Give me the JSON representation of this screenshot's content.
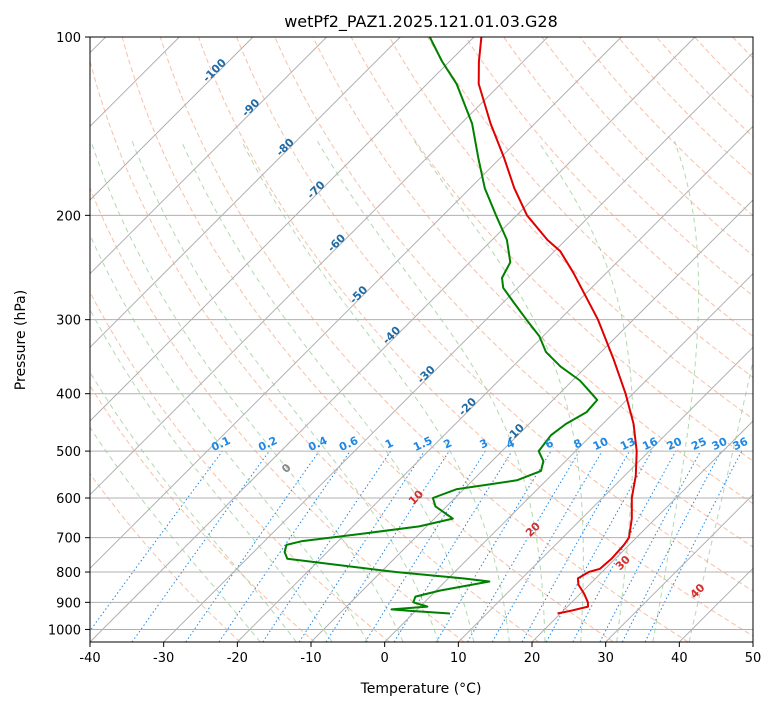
{
  "chart_data": {
    "type": "line",
    "subtype": "skew-t log-p diagram",
    "title": "wetPf2_PAZ1.2025.121.01.03.G28",
    "xlabel": "Temperature (°C)",
    "ylabel": "Pressure (hPa)",
    "xlim": [
      -40,
      50
    ],
    "ylim": [
      1050,
      100
    ],
    "y_scale": "log",
    "x_ticks": [
      -40,
      -30,
      -20,
      -10,
      0,
      10,
      20,
      30,
      40,
      50
    ],
    "y_ticks": [
      100,
      200,
      300,
      400,
      500,
      600,
      700,
      800,
      900,
      1000
    ],
    "grid": true,
    "legend": "none",
    "colors": {
      "temperature": "#e00000",
      "dewpoint": "#008000",
      "isotherm_label": "#1f6aa5",
      "mixing_ratio": "#1e88e5",
      "moist_adiabat_label": "#d32f2f",
      "dry_adiabat": "#f4a582",
      "moist_adiabat": "#8fc98f",
      "grid": "#b0b0b0"
    },
    "series": [
      {
        "key": "temperature",
        "points": [
          [
            940,
            19.6
          ],
          [
            930,
            21.0
          ],
          [
            915,
            22.8
          ],
          [
            900,
            22.2
          ],
          [
            870,
            20.5
          ],
          [
            840,
            18.5
          ],
          [
            820,
            17.6
          ],
          [
            800,
            18.2
          ],
          [
            790,
            19.3
          ],
          [
            760,
            19.5
          ],
          [
            720,
            19.3
          ],
          [
            700,
            19.0
          ],
          [
            650,
            16.8
          ],
          [
            600,
            14.0
          ],
          [
            550,
            11.5
          ],
          [
            500,
            8.3
          ],
          [
            450,
            4.2
          ],
          [
            400,
            -1.0
          ],
          [
            350,
            -7.3
          ],
          [
            300,
            -14.8
          ],
          [
            250,
            -24.5
          ],
          [
            230,
            -29.2
          ],
          [
            220,
            -32.5
          ],
          [
            200,
            -38.6
          ],
          [
            180,
            -44.0
          ],
          [
            160,
            -49.5
          ],
          [
            140,
            -56.0
          ],
          [
            120,
            -63.0
          ],
          [
            110,
            -66.0
          ],
          [
            100,
            -69.0
          ]
        ]
      },
      {
        "key": "dewpoint",
        "points": [
          [
            940,
            5.0
          ],
          [
            930,
            -1.0
          ],
          [
            925,
            -3.5
          ],
          [
            915,
            1.0
          ],
          [
            900,
            -1.5
          ],
          [
            880,
            -2.0
          ],
          [
            860,
            0.5
          ],
          [
            830,
            6.0
          ],
          [
            820,
            2.0
          ],
          [
            800,
            -8.0
          ],
          [
            760,
            -24.5
          ],
          [
            740,
            -25.8
          ],
          [
            720,
            -26.5
          ],
          [
            710,
            -25.0
          ],
          [
            690,
            -18.0
          ],
          [
            670,
            -11.0
          ],
          [
            650,
            -7.5
          ],
          [
            620,
            -11.5
          ],
          [
            600,
            -13.0
          ],
          [
            580,
            -11.0
          ],
          [
            560,
            -4.0
          ],
          [
            540,
            -2.0
          ],
          [
            520,
            -3.0
          ],
          [
            500,
            -5.0
          ],
          [
            470,
            -5.5
          ],
          [
            450,
            -5.0
          ],
          [
            430,
            -3.8
          ],
          [
            410,
            -4.0
          ],
          [
            400,
            -5.6
          ],
          [
            380,
            -9.0
          ],
          [
            360,
            -13.5
          ],
          [
            340,
            -17.5
          ],
          [
            320,
            -20.5
          ],
          [
            300,
            -24.5
          ],
          [
            280,
            -28.7
          ],
          [
            265,
            -32.0
          ],
          [
            255,
            -33.5
          ],
          [
            240,
            -34.5
          ],
          [
            220,
            -38.0
          ],
          [
            200,
            -42.8
          ],
          [
            180,
            -48.0
          ],
          [
            160,
            -53.0
          ],
          [
            140,
            -58.5
          ],
          [
            120,
            -66.0
          ],
          [
            110,
            -71.0
          ],
          [
            100,
            -76.0
          ]
        ]
      }
    ],
    "isotherm_labels": [
      -100,
      -90,
      -80,
      -70,
      -60,
      -50,
      -40,
      -30,
      -20,
      -10
    ],
    "mixing_ratio_labels": [
      "0.1",
      "0.2",
      "0.4",
      "0.6",
      "1",
      "1.5",
      "2",
      "3",
      "4",
      "6",
      "8",
      "10",
      "13",
      "16",
      "20",
      "25",
      "30",
      "36"
    ],
    "moist_adiabat_labels": [
      0,
      10,
      20,
      30,
      40
    ]
  }
}
